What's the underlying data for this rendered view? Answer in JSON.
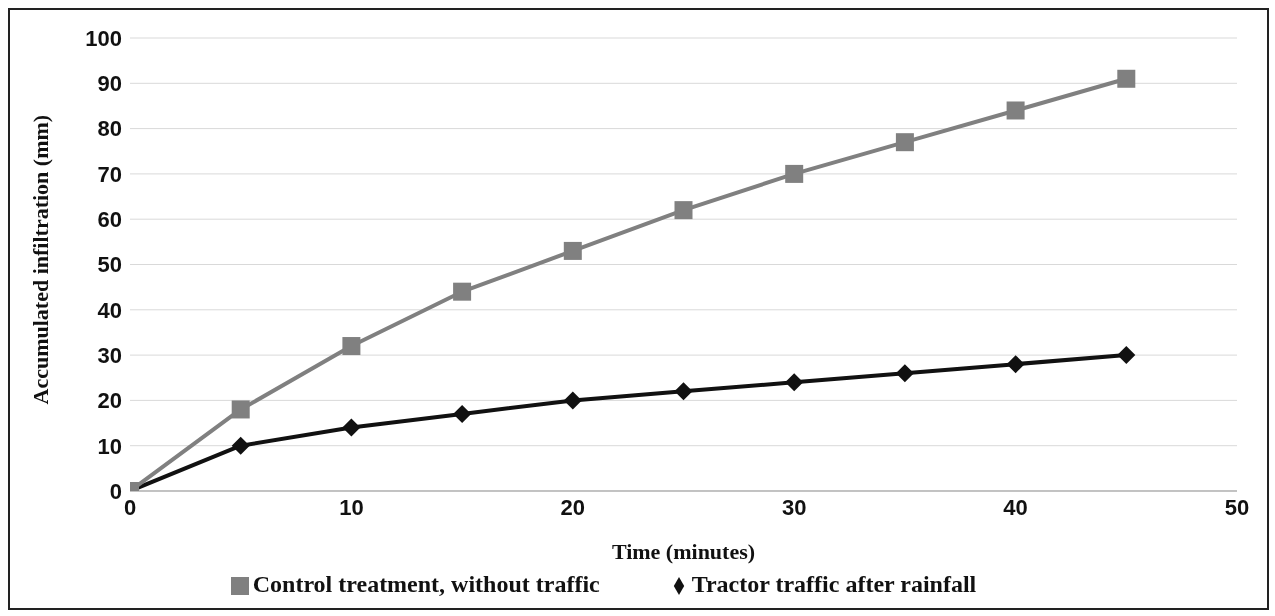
{
  "chart_data": {
    "type": "line",
    "xlabel": "Time (minutes)",
    "ylabel": "Accumulated infiltration (mm)",
    "x": [
      0,
      5,
      10,
      15,
      20,
      25,
      30,
      35,
      40,
      45
    ],
    "series": [
      {
        "name": "Tractor traffic after rainfall",
        "color": "#111111",
        "marker": "diamond",
        "values": [
          0,
          10,
          14,
          17,
          20,
          22,
          24,
          26,
          28,
          30
        ]
      },
      {
        "name": "Control treatment, without traffic",
        "color": "#808080",
        "marker": "square",
        "values": [
          0,
          18,
          32,
          44,
          53,
          62,
          70,
          77,
          84,
          91
        ]
      }
    ],
    "xlim": [
      0,
      50
    ],
    "xticks": [
      0,
      10,
      20,
      30,
      40,
      50
    ],
    "ylim": [
      0,
      100
    ],
    "yticks": [
      0,
      10,
      20,
      30,
      40,
      50,
      60,
      70,
      80,
      90,
      100
    ],
    "grid": "y",
    "legend": "bottom"
  }
}
